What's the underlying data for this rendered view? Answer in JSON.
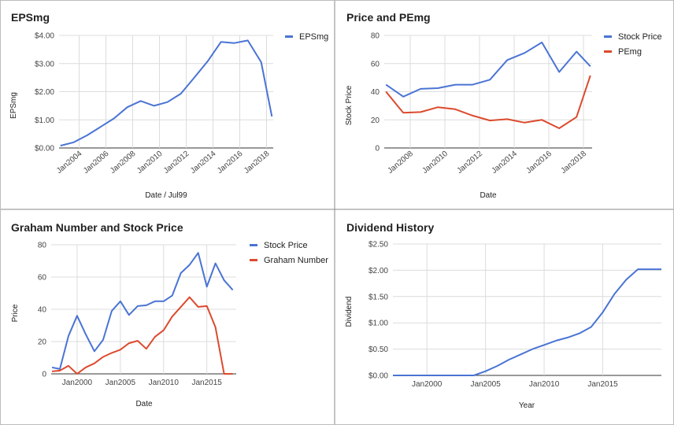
{
  "colors": {
    "blue": "#4a74d4",
    "red": "#dc4a2e",
    "grid": "#dcdcdc",
    "panel_border": "#8a8a8a"
  },
  "chart_data": [
    {
      "type": "line",
      "title": "EPSmg",
      "xlabel": "Date / Jul99",
      "ylabel": "EPSmg",
      "x_domain": [
        2002.5,
        2018.5
      ],
      "xticks": [
        {
          "value": 2004,
          "label": "Jan2004"
        },
        {
          "value": 2006,
          "label": "Jan2006"
        },
        {
          "value": 2008,
          "label": "Jan2008"
        },
        {
          "value": 2010,
          "label": "Jan2010"
        },
        {
          "value": 2012,
          "label": "Jan2012"
        },
        {
          "value": 2014,
          "label": "Jan2014"
        },
        {
          "value": 2016,
          "label": "Jan2016"
        },
        {
          "value": 2018,
          "label": "Jan2018"
        }
      ],
      "xtick_rotate": true,
      "ylim": [
        0,
        4
      ],
      "yticks": [
        {
          "value": 0,
          "label": "$0.00"
        },
        {
          "value": 1,
          "label": "$1.00"
        },
        {
          "value": 2,
          "label": "$2.00"
        },
        {
          "value": 3,
          "label": "$3.00"
        },
        {
          "value": 4,
          "label": "$4.00"
        }
      ],
      "legend": "right",
      "series": [
        {
          "name": "EPSmg",
          "color": "#4a74d4",
          "x": [
            2002.6,
            2003.6,
            2004.6,
            2005.6,
            2006.6,
            2007.6,
            2008.6,
            2009.6,
            2010.6,
            2011.6,
            2012.6,
            2013.6,
            2014.6,
            2015.6,
            2016.6,
            2017.6,
            2018.4
          ],
          "y": [
            0.08,
            0.2,
            0.45,
            0.75,
            1.05,
            1.45,
            1.67,
            1.5,
            1.63,
            1.93,
            2.5,
            3.08,
            3.77,
            3.73,
            3.82,
            3.05,
            1.12
          ]
        }
      ]
    },
    {
      "type": "line",
      "title": "Price and PEmg",
      "xlabel": "Date",
      "ylabel": "Stock Price",
      "x_domain": [
        2006.5,
        2018.5
      ],
      "xticks": [
        {
          "value": 2008,
          "label": "Jan2008"
        },
        {
          "value": 2010,
          "label": "Jan2010"
        },
        {
          "value": 2012,
          "label": "Jan2012"
        },
        {
          "value": 2014,
          "label": "Jan2014"
        },
        {
          "value": 2016,
          "label": "Jan2016"
        },
        {
          "value": 2018,
          "label": "Jan2018"
        }
      ],
      "xtick_rotate": true,
      "ylim": [
        0,
        80
      ],
      "yticks": [
        {
          "value": 0,
          "label": "0"
        },
        {
          "value": 20,
          "label": "20"
        },
        {
          "value": 40,
          "label": "40"
        },
        {
          "value": 60,
          "label": "60"
        },
        {
          "value": 80,
          "label": "80"
        }
      ],
      "legend": "right",
      "series": [
        {
          "name": "Stock Price",
          "color": "#4a74d4",
          "x": [
            2006.6,
            2007.6,
            2008.6,
            2009.6,
            2010.6,
            2011.6,
            2012.6,
            2013.6,
            2014.6,
            2015.6,
            2016.6,
            2017.6,
            2018.4
          ],
          "y": [
            45,
            36.5,
            42,
            42.5,
            45,
            45,
            48.5,
            62.5,
            67.5,
            75,
            54,
            68.5,
            58
          ]
        },
        {
          "name": "PEmg",
          "color": "#dc4a2e",
          "x": [
            2006.6,
            2007.6,
            2008.6,
            2009.6,
            2010.6,
            2011.6,
            2012.6,
            2013.6,
            2014.6,
            2015.6,
            2016.6,
            2017.6,
            2018.4
          ],
          "y": [
            40,
            25,
            25.5,
            29,
            27.5,
            23,
            19.5,
            20.5,
            18,
            20,
            14,
            22,
            51.5
          ]
        }
      ]
    },
    {
      "type": "line",
      "title": "Graham Number and Stock Price",
      "xlabel": "Date",
      "ylabel": "Price",
      "x_domain": [
        1997.0,
        2018.4
      ],
      "xticks": [
        {
          "value": 2000,
          "label": "Jan2000"
        },
        {
          "value": 2005,
          "label": "Jan2005"
        },
        {
          "value": 2010,
          "label": "Jan2010"
        },
        {
          "value": 2015,
          "label": "Jan2015"
        }
      ],
      "xtick_rotate": false,
      "ylim": [
        0,
        80
      ],
      "yticks": [
        {
          "value": 0,
          "label": "0"
        },
        {
          "value": 20,
          "label": "20"
        },
        {
          "value": 40,
          "label": "40"
        },
        {
          "value": 60,
          "label": "60"
        },
        {
          "value": 80,
          "label": "80"
        }
      ],
      "legend": "right",
      "series": [
        {
          "name": "Stock Price",
          "color": "#4a74d4",
          "x": [
            1997.1,
            1998.0,
            1999.0,
            2000.0,
            2001.0,
            2002.0,
            2003.0,
            2004.0,
            2005.0,
            2006.0,
            2007.0,
            2008.0,
            2009.0,
            2010.0,
            2011.0,
            2012.0,
            2013.0,
            2014.0,
            2015.0,
            2016.0,
            2017.0,
            2018.0
          ],
          "y": [
            4,
            3,
            23.5,
            36,
            24.5,
            14,
            21,
            39,
            45,
            36.5,
            42,
            42.5,
            45,
            45,
            48.5,
            62.5,
            67.5,
            75,
            54,
            68.5,
            58,
            52
          ]
        },
        {
          "name": "Graham Number",
          "color": "#dc4a2e",
          "x": [
            1997.1,
            1998.0,
            1999.0,
            2000.0,
            2001.0,
            2002.0,
            2003.0,
            2004.0,
            2005.0,
            2006.0,
            2007.0,
            2008.0,
            2009.0,
            2010.0,
            2011.0,
            2012.0,
            2013.0,
            2014.0,
            2015.0,
            2016.0,
            2017.0,
            2018.0
          ],
          "y": [
            1.5,
            2,
            5,
            0,
            4,
            6.5,
            10.5,
            13,
            15,
            19,
            20.5,
            15.5,
            23,
            27,
            35.5,
            41.5,
            47.5,
            41.5,
            42,
            29,
            0,
            0
          ]
        }
      ]
    },
    {
      "type": "line",
      "title": "Dividend History",
      "xlabel": "Year",
      "ylabel": "Dividend",
      "x_domain": [
        1997.1,
        2020.0
      ],
      "xticks": [
        {
          "value": 2000,
          "label": "Jan2000"
        },
        {
          "value": 2005,
          "label": "Jan2005"
        },
        {
          "value": 2010,
          "label": "Jan2010"
        },
        {
          "value": 2015,
          "label": "Jan2015"
        }
      ],
      "xtick_rotate": false,
      "ylim": [
        0,
        2.5
      ],
      "yticks": [
        {
          "value": 0,
          "label": "$0.00"
        },
        {
          "value": 0.5,
          "label": "$0.50"
        },
        {
          "value": 1,
          "label": "$1.00"
        },
        {
          "value": 1.5,
          "label": "$1.50"
        },
        {
          "value": 2,
          "label": "$2.00"
        },
        {
          "value": 2.5,
          "label": "$2.50"
        }
      ],
      "legend": "none",
      "series": [
        {
          "name": "",
          "color": "#4a74d4",
          "x": [
            1997.1,
            1998,
            1999,
            2000,
            2001,
            2002,
            2003,
            2004,
            2005,
            2006,
            2007,
            2008,
            2009,
            2010,
            2011,
            2012,
            2013,
            2014,
            2015,
            2016,
            2017,
            2018,
            2019,
            2020
          ],
          "y": [
            0,
            0,
            0,
            0,
            0,
            0,
            0,
            0,
            0.08,
            0.18,
            0.3,
            0.4,
            0.5,
            0.58,
            0.66,
            0.72,
            0.8,
            0.92,
            1.2,
            1.55,
            1.82,
            2.02,
            2.02,
            2.02
          ]
        }
      ]
    }
  ]
}
